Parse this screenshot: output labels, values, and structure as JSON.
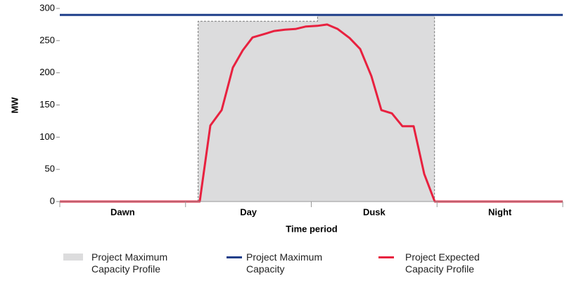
{
  "chart_data": {
    "type": "line",
    "categories": [
      "Dawn",
      "Day",
      "Dusk",
      "Night"
    ],
    "xlim": [
      0,
      4
    ],
    "ylim": [
      0,
      300
    ],
    "yticks": [
      0,
      50,
      100,
      150,
      200,
      250,
      300
    ],
    "ylabel": "MW",
    "xlabel": "Time period",
    "series": [
      {
        "name": "Project Maximum Capacity Profile",
        "kind": "area",
        "color": "#dcdcdd",
        "x": [
          1.1,
          1.1,
          2.05,
          2.05,
          2.98,
          2.98
        ],
        "values": [
          0,
          280,
          280,
          290,
          290,
          0
        ]
      },
      {
        "name": "Project Maximum Capacity",
        "kind": "line",
        "color": "#1f3f8a",
        "x": [
          0,
          4
        ],
        "values": [
          290,
          290
        ]
      },
      {
        "name": "Project Expected Capacity Profile",
        "kind": "line",
        "color": "#e8213f",
        "x": [
          0,
          1.113,
          1.197,
          1.287,
          1.376,
          1.455,
          1.533,
          1.622,
          1.706,
          1.79,
          1.874,
          1.958,
          2.048,
          2.126,
          2.21,
          2.305,
          2.389,
          2.478,
          2.557,
          2.641,
          2.725,
          2.814,
          2.898,
          2.982,
          4
        ],
        "values": [
          0,
          0,
          118,
          142,
          208,
          235,
          255,
          260,
          265,
          267,
          268,
          272,
          273,
          275,
          268,
          254,
          237,
          195,
          142,
          137,
          117,
          117,
          43,
          0,
          0
        ]
      }
    ]
  }
}
